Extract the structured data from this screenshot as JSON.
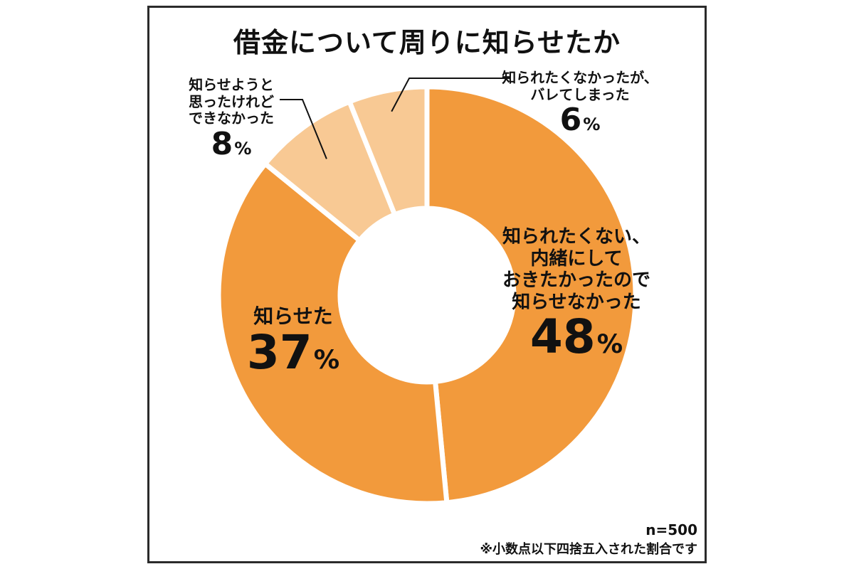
{
  "chart_data": {
    "type": "pie",
    "title": "借金について周りに知らせたか",
    "variant": "donut",
    "categories": [
      "知られたくない、内緒にしておきたかったので知らせなかった",
      "知らせた",
      "知らせようと思ったけれどできなかった",
      "知られたくなかったが、バレてしまった"
    ],
    "values": [
      48,
      37,
      8,
      6
    ],
    "unit": "%",
    "colors": [
      "#f29a3c",
      "#f29a3c",
      "#f8c994",
      "#f8c994"
    ],
    "labels": [
      {
        "lines": [
          "知られたくない、",
          "内緒にして",
          "おきたかったので",
          "知らせなかった"
        ],
        "pct": "48",
        "unit": "%"
      },
      {
        "lines": [
          "知らせた"
        ],
        "pct": "37",
        "unit": "%"
      },
      {
        "lines": [
          "知らせようと",
          "思ったけれど",
          "できなかった"
        ],
        "pct": "8",
        "unit": "%"
      },
      {
        "lines": [
          "知られたくなかったが、",
          "バレてしまった"
        ],
        "pct": "6",
        "unit": "%"
      }
    ]
  },
  "footer": {
    "n": "n=500",
    "note": "※小数点以下四捨五入された割合です"
  }
}
